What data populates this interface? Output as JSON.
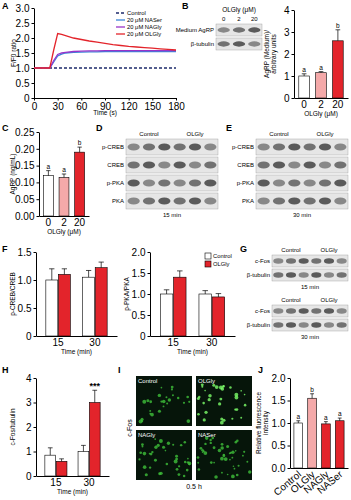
{
  "chart_data": [
    {
      "type": "line",
      "x_label": "Time (s)",
      "y_label": "F/F0 ratio",
      "x": [
        0,
        10,
        20,
        25,
        30,
        35,
        40,
        50,
        60,
        70,
        80,
        90,
        100,
        110,
        120,
        130,
        140,
        150,
        160,
        170,
        180
      ],
      "xlim": [
        0,
        180
      ],
      "xticks": [
        0,
        30,
        60,
        90,
        120,
        150,
        180
      ],
      "ylim": [
        0,
        3
      ],
      "yticks": [
        0,
        0.5,
        {
          "value": 1,
          "label": "1.0"
        },
        1.5,
        {
          "value": 2,
          "label": "2.0"
        },
        2.5,
        {
          "value": 3,
          "label": "3.0"
        }
      ],
      "legend": "top-right",
      "series": [
        {
          "name": "Control",
          "color": "#1c2a6b",
          "line_style": "dashed",
          "values": [
            1,
            1,
            1,
            1,
            1,
            1,
            1,
            1,
            1,
            1,
            1,
            1,
            1,
            1,
            1,
            1,
            1,
            1,
            1,
            1,
            1
          ]
        },
        {
          "name": "20 μM NASer",
          "color": "#3a86d8",
          "line_style": "solid",
          "values": [
            1,
            1,
            1,
            1.2,
            1.4,
            1.46,
            1.5,
            1.52,
            1.53,
            1.54,
            1.54,
            1.55,
            1.55,
            1.55,
            1.55,
            1.55,
            1.55,
            1.55,
            1.55,
            1.55,
            1.55
          ]
        },
        {
          "name": "20 μM NAGly",
          "color": "#9a33c9",
          "line_style": "solid",
          "values": [
            1,
            1,
            1,
            1.25,
            1.45,
            1.5,
            1.52,
            1.55,
            1.56,
            1.57,
            1.57,
            1.58,
            1.58,
            1.58,
            1.58,
            1.58,
            1.58,
            1.58,
            1.58,
            1.58,
            1.58
          ]
        },
        {
          "name": "20 μM OLGly",
          "color": "#e3242b",
          "line_style": "solid",
          "values": [
            1,
            1,
            1,
            1.6,
            2.15,
            2.12,
            2.08,
            2.0,
            1.95,
            1.9,
            1.86,
            1.82,
            1.78,
            1.75,
            1.72,
            1.7,
            1.68,
            1.66,
            1.64,
            1.62,
            1.6
          ]
        }
      ]
    },
    {
      "type": "bar",
      "x_label": "OLGly (μM)",
      "y_label": [
        "AgRP (Medium)/",
        "arbitrary units"
      ],
      "categories": [
        "0",
        "2",
        "20"
      ],
      "values": [
        1.0,
        1.15,
        2.6
      ],
      "errors": [
        0.1,
        0.05,
        0.5
      ],
      "annotations": [
        "a",
        "a",
        "b"
      ],
      "colors": [
        "#ffffff",
        "#f4a9a9",
        "#e3242b"
      ],
      "ylim": [
        0,
        4
      ],
      "yticks": [
        0,
        1,
        2,
        3,
        4
      ]
    },
    {
      "type": "bar",
      "x_label": "OLGly (μM)",
      "y_label": "AgRP (ng/mL)",
      "categories": [
        "0",
        "2",
        "20"
      ],
      "values": [
        0.12,
        0.115,
        0.19
      ],
      "errors": [
        0.015,
        0.01,
        0.015
      ],
      "annotations": [
        "a",
        "a",
        "b"
      ],
      "colors": [
        "#ffffff",
        "#f4a9a9",
        "#e3242b"
      ],
      "ylim": [
        0,
        0.25
      ],
      "yticks": [
        {
          "value": 0,
          "label": "0.00"
        },
        0.05,
        {
          "value": 0.1,
          "label": "0.10"
        },
        0.15,
        {
          "value": 0.2,
          "label": "0.20"
        },
        0.25
      ]
    },
    {
      "type": "bar",
      "x_label": "Time (min)",
      "y_label": "p-CREB/CREB",
      "categories": [
        "15",
        "30"
      ],
      "ylim": [
        0,
        1.5
      ],
      "yticks": [
        0,
        0.5,
        {
          "value": 1,
          "label": "1.0"
        },
        1.5
      ],
      "series": [
        {
          "name": "Control",
          "color": "#ffffff",
          "values": [
            1.0,
            1.05
          ],
          "errors": [
            0.2,
            0.12
          ]
        },
        {
          "name": "OLGly",
          "color": "#e3242b",
          "values": [
            1.1,
            1.22
          ],
          "errors": [
            0.1,
            0.1
          ]
        }
      ]
    },
    {
      "type": "bar",
      "x_label": "Time (min)",
      "y_label": "p-PKA/PKA",
      "categories": [
        "15",
        "30"
      ],
      "ylim": [
        0,
        2
      ],
      "yticks": [
        0,
        0.5,
        {
          "value": 1,
          "label": "1.0"
        },
        1.5,
        {
          "value": 2,
          "label": "2.0"
        }
      ],
      "legend": "top-right",
      "series": [
        {
          "name": "Control",
          "color": "#ffffff",
          "values": [
            1.0,
            1.0
          ],
          "errors": [
            0.1,
            0.08
          ]
        },
        {
          "name": "OLGly",
          "color": "#e3242b",
          "values": [
            1.4,
            0.93
          ],
          "errors": [
            0.15,
            0.08
          ]
        }
      ]
    },
    {
      "type": "bar",
      "x_label": "Time (min)",
      "y_label": "c-Fos/tubulin",
      "categories": [
        "15",
        "30"
      ],
      "ylim": [
        0,
        4
      ],
      "yticks": [
        0,
        1,
        2,
        3,
        4
      ],
      "series": [
        {
          "name": "Control",
          "color": "#ffffff",
          "values": [
            0.85,
            1.0
          ],
          "errors": [
            0.3,
            0.25
          ]
        },
        {
          "name": "OLGly",
          "color": "#e3242b",
          "values": [
            0.6,
            3.0
          ],
          "errors": [
            0.1,
            0.5
          ],
          "annotations": [
            null,
            "***"
          ]
        }
      ]
    },
    {
      "type": "bar",
      "y_label": [
        "Relative fluorescence",
        "intensity"
      ],
      "categories": [
        "Control",
        "OLGly",
        "NAGly",
        "NASer"
      ],
      "values": [
        1.0,
        1.55,
        0.98,
        1.05
      ],
      "errors": [
        0.05,
        0.1,
        0.05,
        0.06
      ],
      "annotations": [
        "a",
        "b",
        "a",
        "a"
      ],
      "colors": [
        "#ffffff",
        "#f4a9a9",
        "#e3242b",
        "#e3242b"
      ],
      "ylim": [
        0,
        2
      ],
      "yticks": [
        {
          "value": 0,
          "label": "0.0"
        },
        0.5,
        {
          "value": 1,
          "label": "1.0"
        },
        1.5,
        {
          "value": 2,
          "label": "2.0"
        }
      ]
    }
  ],
  "blots": {
    "B": {
      "header": "OLGly (μM)",
      "columns": [
        "0",
        "2",
        "20"
      ],
      "rows": [
        "Medium AgRP",
        "β-tubulin"
      ]
    },
    "D": {
      "columns": [
        "Control",
        "OLGly"
      ],
      "rows": [
        "p-CREB",
        "CREB",
        "p-PKA",
        "PKA"
      ],
      "caption": "15 min"
    },
    "E": {
      "columns": [
        "Control",
        "OLGly"
      ],
      "rows": [
        "p-CREB",
        "CREB",
        "p-PKA",
        "PKA"
      ],
      "caption": "30 min"
    },
    "G": [
      {
        "columns": [
          "Control",
          "OLGly"
        ],
        "rows": [
          "c-Fos",
          "β-tubulin"
        ],
        "caption": "15 min"
      },
      {
        "columns": [
          "Control",
          "OLGly"
        ],
        "rows": [
          "c-Fos",
          "β-tubulin"
        ],
        "caption": "30 min"
      }
    ]
  },
  "images": {
    "I": {
      "row_label": "c-Fos",
      "panels": [
        "Control",
        "OLGly",
        "NAGly",
        "NASer"
      ],
      "caption": "0.5 h"
    }
  },
  "panel_labels": [
    "A",
    "B",
    "C",
    "D",
    "E",
    "F",
    "G",
    "H",
    "I",
    "J"
  ]
}
